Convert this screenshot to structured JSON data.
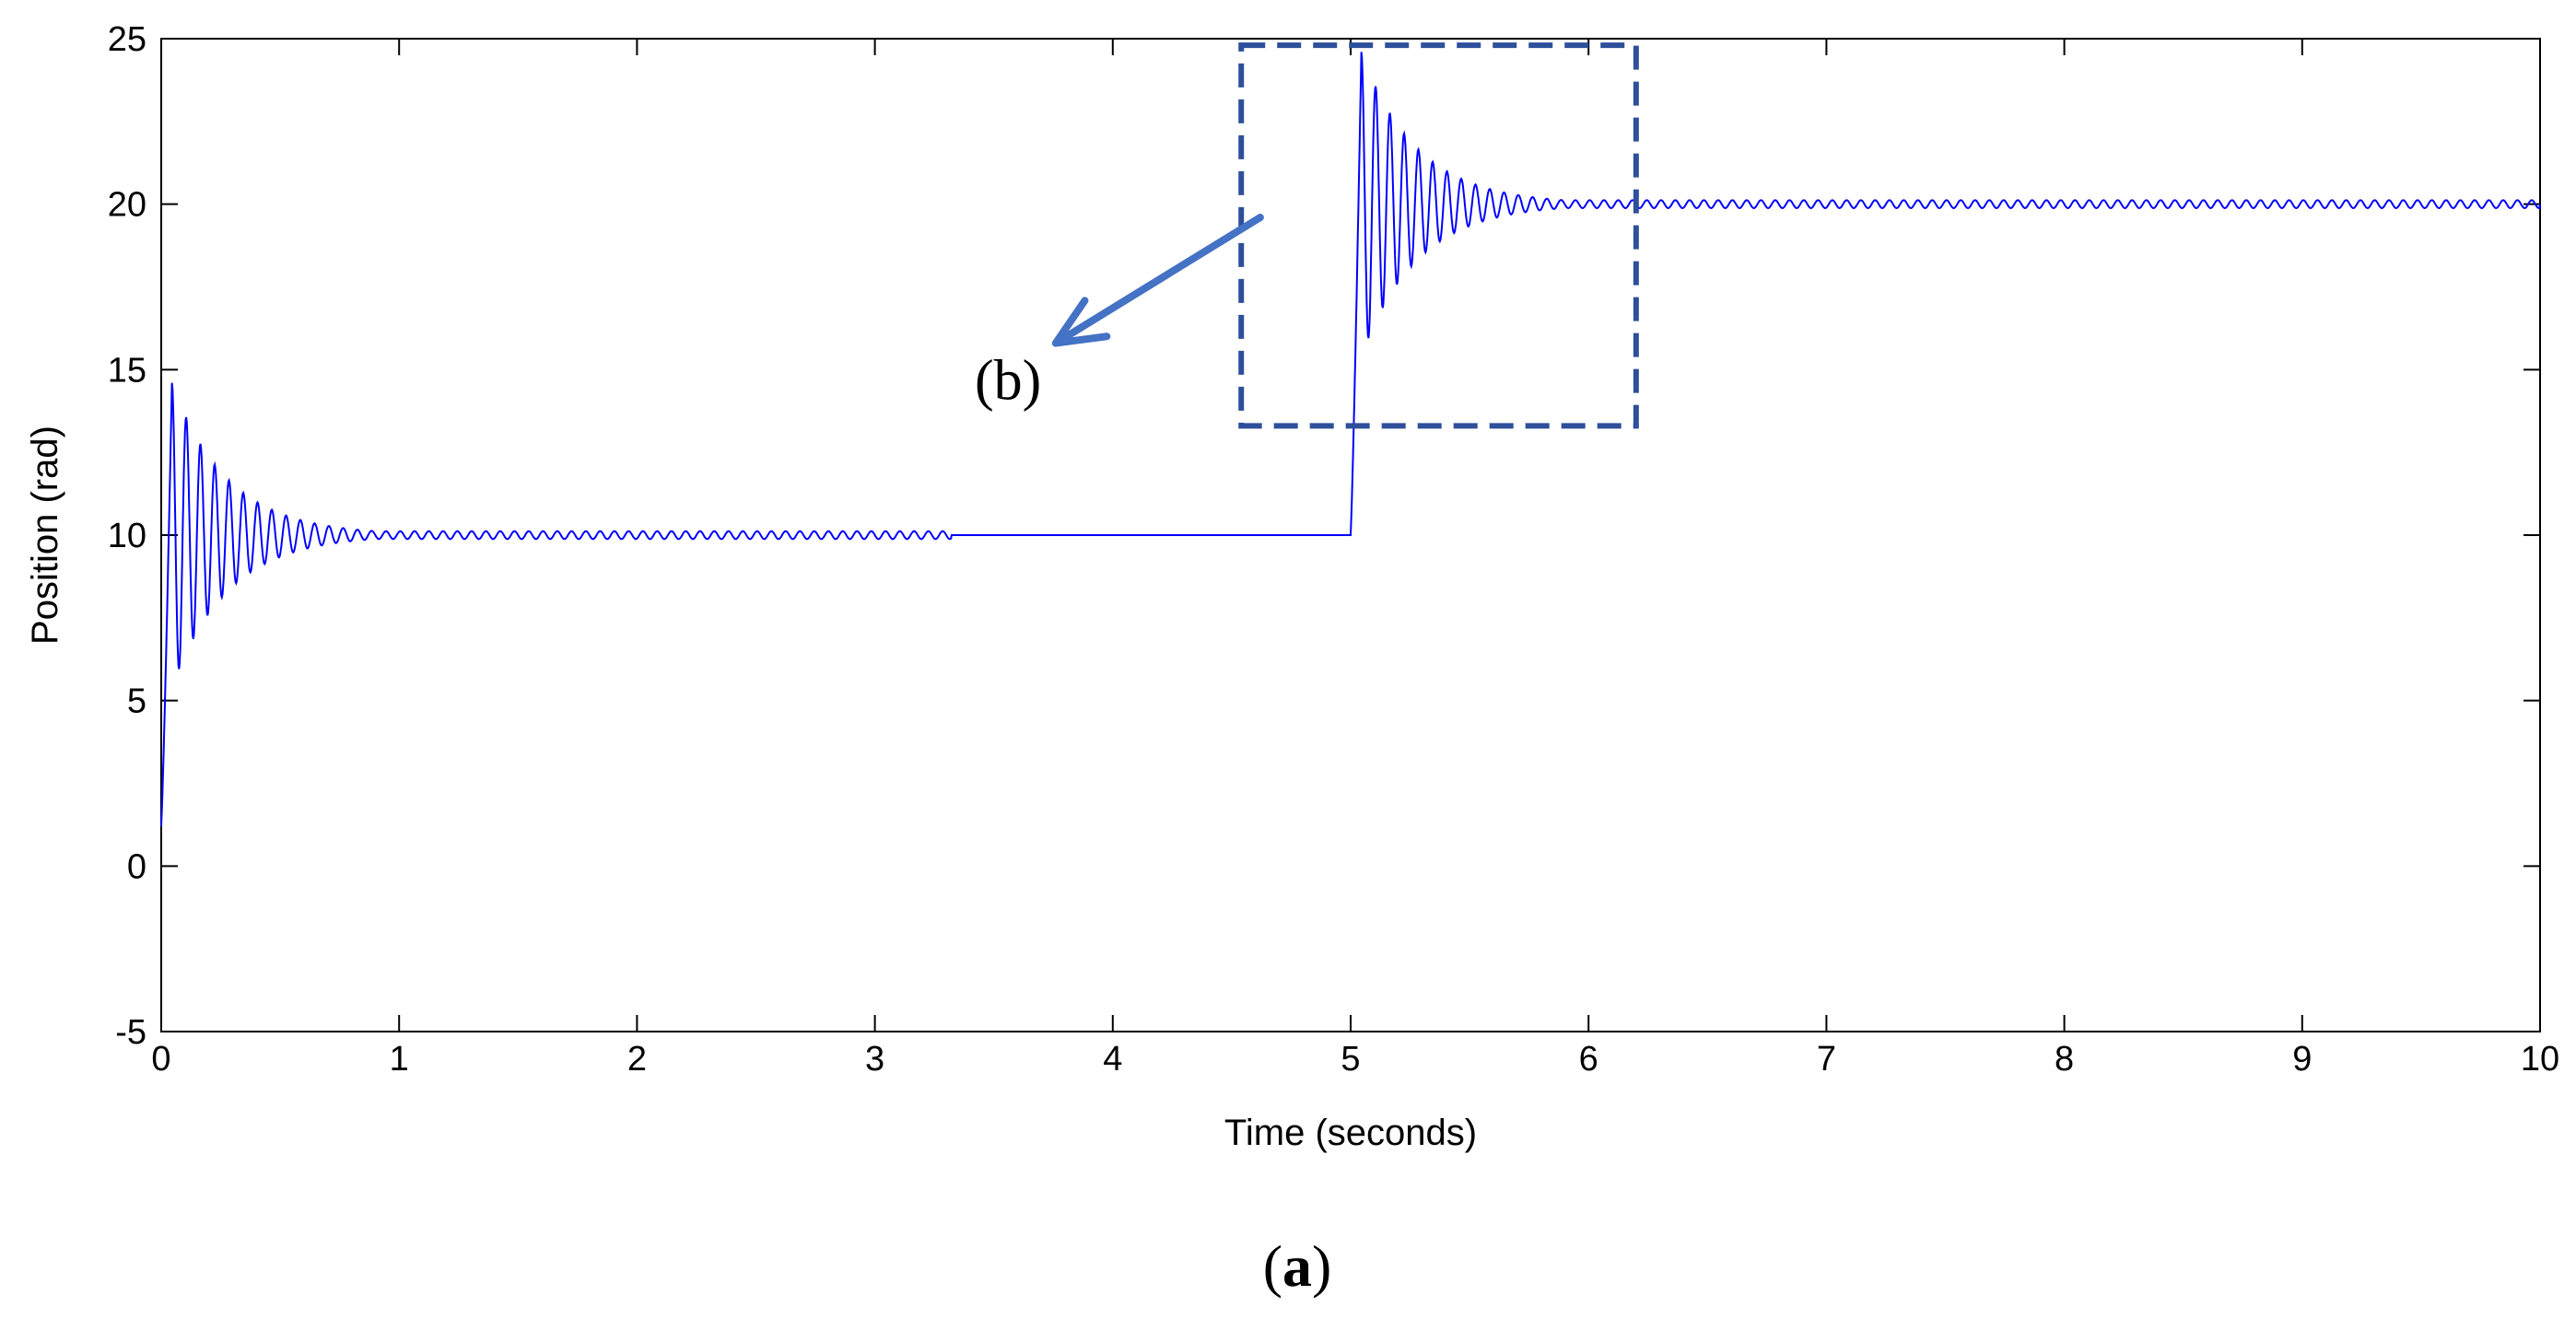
{
  "chart_data": {
    "type": "line",
    "xlabel": "Time (seconds)",
    "ylabel": "Position (rad)",
    "xlim": [
      0,
      10
    ],
    "ylim": [
      -5,
      25
    ],
    "xticks": [
      0,
      1,
      2,
      3,
      4,
      5,
      6,
      7,
      8,
      9,
      10
    ],
    "yticks": [
      -5,
      0,
      5,
      10,
      15,
      20,
      25
    ],
    "grid": false,
    "line_color": "#0000ff",
    "series": [
      {
        "step_response": [
          {
            "start_time": 0,
            "initial_value": 1.2,
            "setpoint": 10,
            "first_peak": 14.6,
            "first_trough": 6.4,
            "settle_time": 0.75,
            "steady_ripple": 0.12,
            "ripple_until": 3.32
          },
          {
            "start_time": 5,
            "initial_value": 10,
            "setpoint": 20,
            "first_peak": 24.6,
            "first_trough": 16.4,
            "settle_time": 5.75,
            "steady_ripple": 0.12,
            "ripple_until": 10
          }
        ],
        "oscillation_period": 0.06
      }
    ],
    "annotations": {
      "zoom_box": {
        "x_range": [
          4.54,
          6.2
        ],
        "y_range": [
          13.3,
          24.8
        ],
        "style": "dashed",
        "color": "#2e4f9a"
      },
      "arrow": {
        "from": [
          4.62,
          19.6
        ],
        "to": [
          3.76,
          15.8
        ],
        "color": "#4472c4"
      },
      "callout_label": "(b)",
      "callout_label_at": [
        3.56,
        14.1
      ]
    }
  },
  "figure": {
    "panel_label_open": "(",
    "panel_label_letter": "a",
    "panel_label_close": ")"
  }
}
